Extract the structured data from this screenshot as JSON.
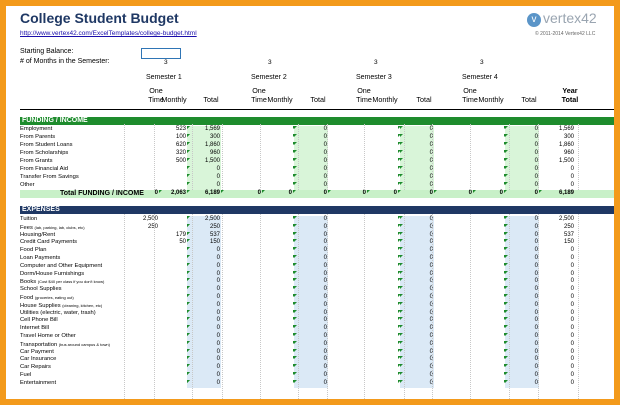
{
  "title": "College Student Budget",
  "link": "http://www.vertex42.com/ExcelTemplates/college-budget.html",
  "logo": "vertex42",
  "copyright": "© 2011-2014 Vertex42 LLC",
  "starting_balance_label": "Starting Balance:",
  "months_label": "# of Months in the Semester:",
  "months": [
    "3",
    "3",
    "3",
    "3"
  ],
  "semesters": [
    "Semester 1",
    "Semester 2",
    "Semester 3",
    "Semester 4"
  ],
  "col_headers": {
    "one": "One",
    "time": "Time",
    "monthly": "Monthly",
    "total": "Total",
    "year": "Year",
    "year_total": "Total"
  },
  "funding": {
    "header": "FUNDING / INCOME",
    "rows": [
      {
        "label": "Employment",
        "monthly": "523",
        "total": "1,569",
        "year": "1,569"
      },
      {
        "label": "From Parents",
        "monthly": "100",
        "total": "300",
        "year": "300"
      },
      {
        "label": "From Student Loans",
        "monthly": "620",
        "total": "1,860",
        "year": "1,860"
      },
      {
        "label": "From Scholarships",
        "monthly": "320",
        "total": "960",
        "year": "960"
      },
      {
        "label": "From Grants",
        "monthly": "500",
        "total": "1,500",
        "year": "1,500"
      },
      {
        "label": "From Financial Aid",
        "monthly": "",
        "total": "0",
        "year": "0"
      },
      {
        "label": "Transfer From Savings",
        "monthly": "",
        "total": "0",
        "year": "0"
      },
      {
        "label": "Other",
        "monthly": "",
        "total": "0",
        "year": "0"
      }
    ],
    "total_label": "Total FUNDING / INCOME",
    "total_row": [
      "0",
      "2,063",
      "6,189",
      "0",
      "0",
      "0",
      "0",
      "0",
      "0",
      "0",
      "0",
      "0",
      "6,189"
    ],
    "zero": "0"
  },
  "expenses": {
    "header": "EXPENSES",
    "rows": [
      {
        "label": "Tuition",
        "sub": "",
        "onetime": "2,500",
        "monthly": "",
        "total": "2,500",
        "year": "2,500"
      },
      {
        "label": "Fees",
        "sub": "(lab, parking, lab, clubs, etc)",
        "onetime": "250",
        "monthly": "",
        "total": "250",
        "year": "250"
      },
      {
        "label": "Housing/Rent",
        "sub": "",
        "onetime": "",
        "monthly": "179",
        "total": "537",
        "year": "537"
      },
      {
        "label": "Credit Card Payments",
        "sub": "",
        "onetime": "",
        "monthly": "50",
        "total": "150",
        "year": "150"
      },
      {
        "label": "Food Plan",
        "sub": "",
        "onetime": "",
        "monthly": "",
        "total": "0",
        "year": "0"
      },
      {
        "label": "Loan Payments",
        "sub": "",
        "onetime": "",
        "monthly": "",
        "total": "0",
        "year": "0"
      },
      {
        "label": "Computer and Other Equipment",
        "sub": "",
        "onetime": "",
        "monthly": "",
        "total": "0",
        "year": "0"
      },
      {
        "label": "Dorm/House Furnishings",
        "sub": "",
        "onetime": "",
        "monthly": "",
        "total": "0",
        "year": "0"
      },
      {
        "label": "Books",
        "sub": "(Cost $40 per class if you don't know)",
        "onetime": "",
        "monthly": "",
        "total": "0",
        "year": "0"
      },
      {
        "label": "School Supplies",
        "sub": "",
        "onetime": "",
        "monthly": "",
        "total": "0",
        "year": "0"
      },
      {
        "label": "Food",
        "sub": "(groceries, eating out)",
        "onetime": "",
        "monthly": "",
        "total": "0",
        "year": "0"
      },
      {
        "label": "House Supplies",
        "sub": "(cleaning, kitchen, etc)",
        "onetime": "",
        "monthly": "",
        "total": "0",
        "year": "0"
      },
      {
        "label": "Utilities (electric, water, trash)",
        "sub": "",
        "onetime": "",
        "monthly": "",
        "total": "0",
        "year": "0"
      },
      {
        "label": "Cell Phone Bill",
        "sub": "",
        "onetime": "",
        "monthly": "",
        "total": "0",
        "year": "0"
      },
      {
        "label": "Internet Bill",
        "sub": "",
        "onetime": "",
        "monthly": "",
        "total": "0",
        "year": "0"
      },
      {
        "label": "Travel Home or Other",
        "sub": "",
        "onetime": "",
        "monthly": "",
        "total": "0",
        "year": "0"
      },
      {
        "label": "Transportation",
        "sub": "(bus around campus & town)",
        "onetime": "",
        "monthly": "",
        "total": "0",
        "year": "0"
      },
      {
        "label": "Car Payment",
        "sub": "",
        "onetime": "",
        "monthly": "",
        "total": "0",
        "year": "0"
      },
      {
        "label": "Car Insurance",
        "sub": "",
        "onetime": "",
        "monthly": "",
        "total": "0",
        "year": "0"
      },
      {
        "label": "Car Repairs",
        "sub": "",
        "onetime": "",
        "monthly": "",
        "total": "0",
        "year": "0"
      },
      {
        "label": "Fuel",
        "sub": "",
        "onetime": "",
        "monthly": "",
        "total": "0",
        "year": "0"
      },
      {
        "label": "Entertainment",
        "sub": "",
        "onetime": "",
        "monthly": "",
        "total": "0",
        "year": "0"
      }
    ]
  },
  "colors": {
    "green_band": "#1e8c2d",
    "navy_band": "#1f3864",
    "frame": "#f39a1b"
  }
}
